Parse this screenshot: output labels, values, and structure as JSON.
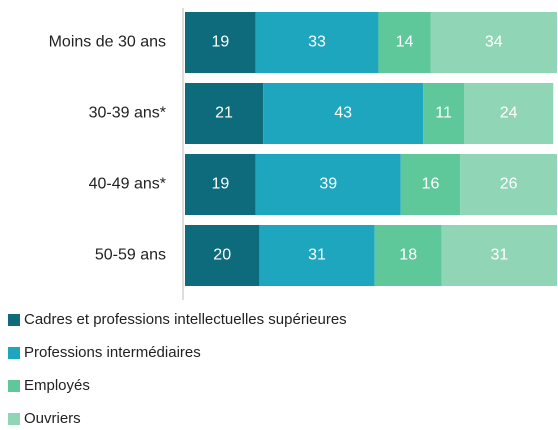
{
  "chart_data": {
    "type": "stacked-bar-horizontal",
    "categories": [
      "Moins de 30 ans",
      "30-39 ans*",
      "40-49 ans*",
      "50-59 ans"
    ],
    "series": [
      {
        "name": "Cadres et professions intellectuelles supérieures",
        "color": "#0e6b7c",
        "values": [
          19,
          21,
          19,
          20
        ]
      },
      {
        "name": "Professions intermédiaires",
        "color": "#1ea6bf",
        "values": [
          33,
          43,
          39,
          31
        ]
      },
      {
        "name": "Employés",
        "color": "#5ec89b",
        "values": [
          14,
          11,
          16,
          18
        ]
      },
      {
        "name": "Ouvriers",
        "color": "#90d5b6",
        "values": [
          34,
          24,
          26,
          31
        ]
      }
    ],
    "xlim": [
      0,
      100
    ],
    "legend": "bottom"
  }
}
